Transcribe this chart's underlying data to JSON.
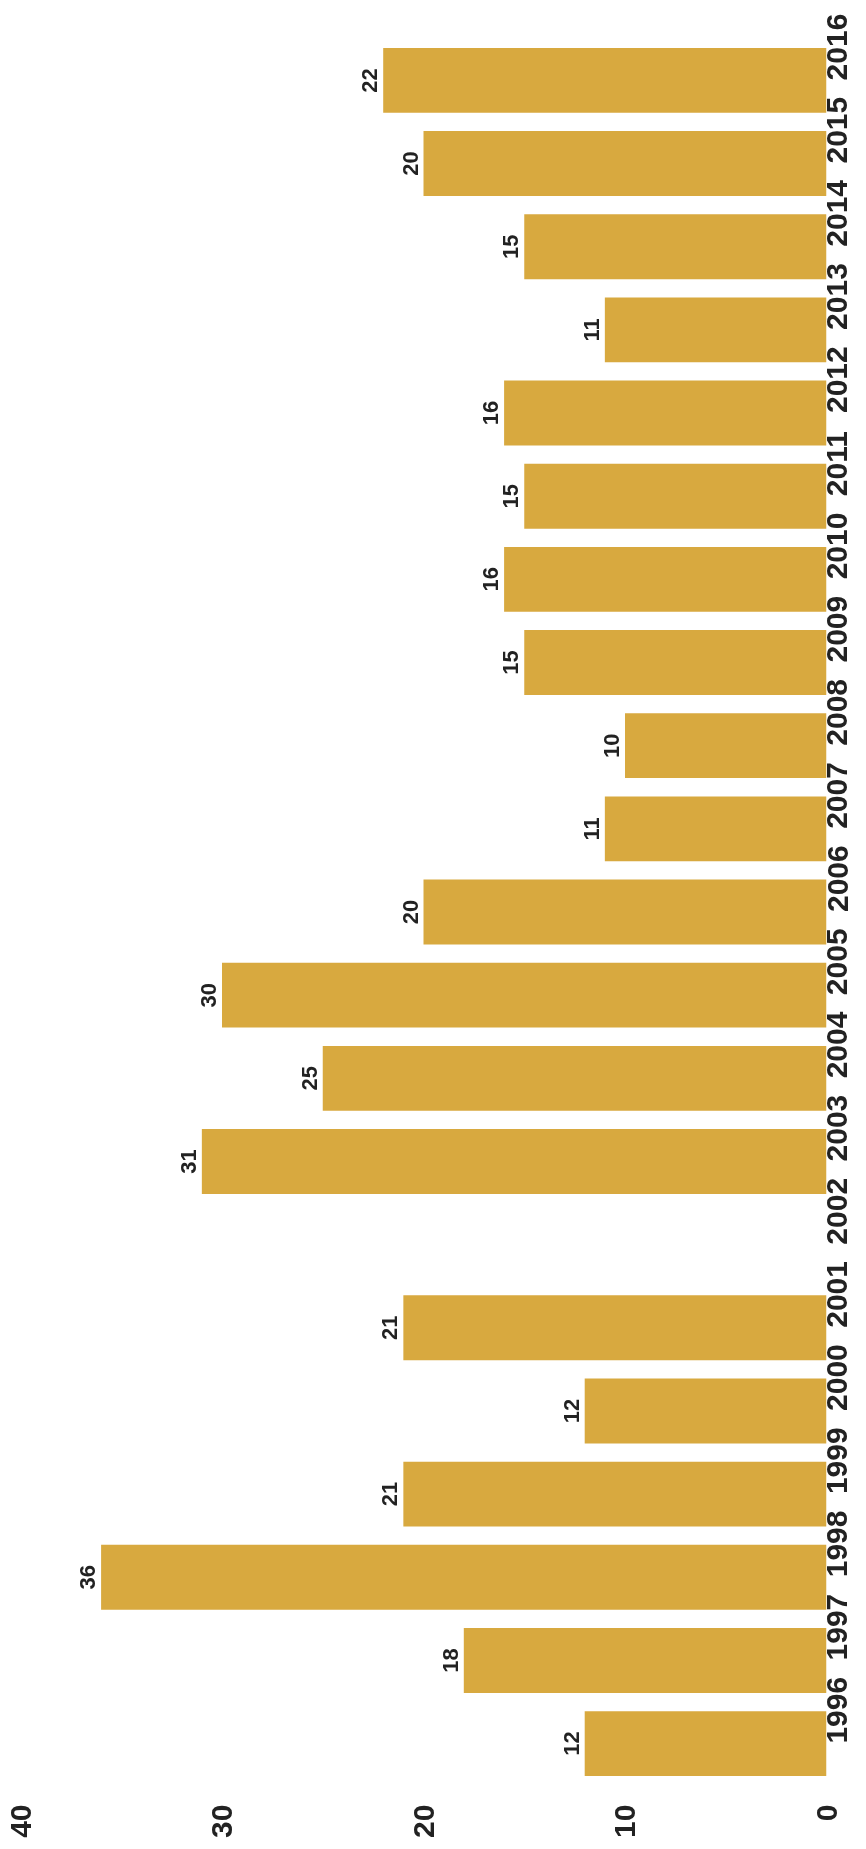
{
  "chart_data": {
    "type": "bar",
    "orientation": "horizontal",
    "categories": [
      "2016",
      "2015",
      "2014",
      "2013",
      "2012",
      "2011",
      "2010",
      "2009",
      "2008",
      "2007",
      "2006",
      "2005",
      "2004",
      "2003",
      "2002",
      "2001",
      "2000",
      "1999",
      "1998",
      "1997",
      "1996"
    ],
    "values": [
      22,
      20,
      15,
      11,
      16,
      15,
      16,
      15,
      10,
      11,
      20,
      30,
      25,
      31,
      null,
      21,
      12,
      21,
      36,
      18,
      12
    ],
    "color": "#d8a93f",
    "xlim": [
      40,
      0
    ],
    "xticks": [
      0,
      10,
      20,
      30,
      40
    ],
    "data_labels": true,
    "grid": false
  }
}
